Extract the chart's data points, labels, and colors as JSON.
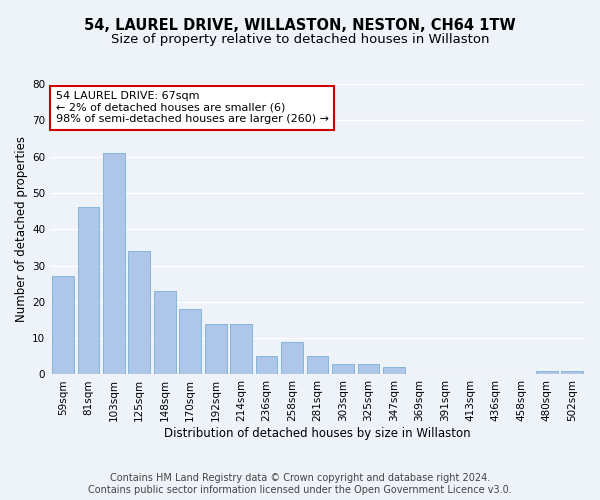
{
  "title": "54, LAUREL DRIVE, WILLASTON, NESTON, CH64 1TW",
  "subtitle": "Size of property relative to detached houses in Willaston",
  "xlabel": "Distribution of detached houses by size in Willaston",
  "ylabel": "Number of detached properties",
  "categories": [
    "59sqm",
    "81sqm",
    "103sqm",
    "125sqm",
    "148sqm",
    "170sqm",
    "192sqm",
    "214sqm",
    "236sqm",
    "258sqm",
    "281sqm",
    "303sqm",
    "325sqm",
    "347sqm",
    "369sqm",
    "391sqm",
    "413sqm",
    "436sqm",
    "458sqm",
    "480sqm",
    "502sqm"
  ],
  "values": [
    27,
    46,
    61,
    34,
    23,
    18,
    14,
    14,
    5,
    9,
    5,
    3,
    3,
    2,
    0,
    0,
    0,
    0,
    0,
    1,
    1
  ],
  "bar_color": "#aec6e8",
  "bar_edge_color": "#7bafd4",
  "annotation_text": "54 LAUREL DRIVE: 67sqm\n← 2% of detached houses are smaller (6)\n98% of semi-detached houses are larger (260) →",
  "annotation_box_color": "#ffffff",
  "annotation_box_edge_color": "#cc0000",
  "ylim": [
    0,
    80
  ],
  "yticks": [
    0,
    10,
    20,
    30,
    40,
    50,
    60,
    70,
    80
  ],
  "background_color": "#eef2f9",
  "grid_color": "#ffffff",
  "footer_line1": "Contains HM Land Registry data © Crown copyright and database right 2024.",
  "footer_line2": "Contains public sector information licensed under the Open Government Licence v3.0.",
  "title_fontsize": 10.5,
  "subtitle_fontsize": 9.5,
  "axis_label_fontsize": 8.5,
  "tick_fontsize": 7.5,
  "annotation_fontsize": 8,
  "footer_fontsize": 7
}
